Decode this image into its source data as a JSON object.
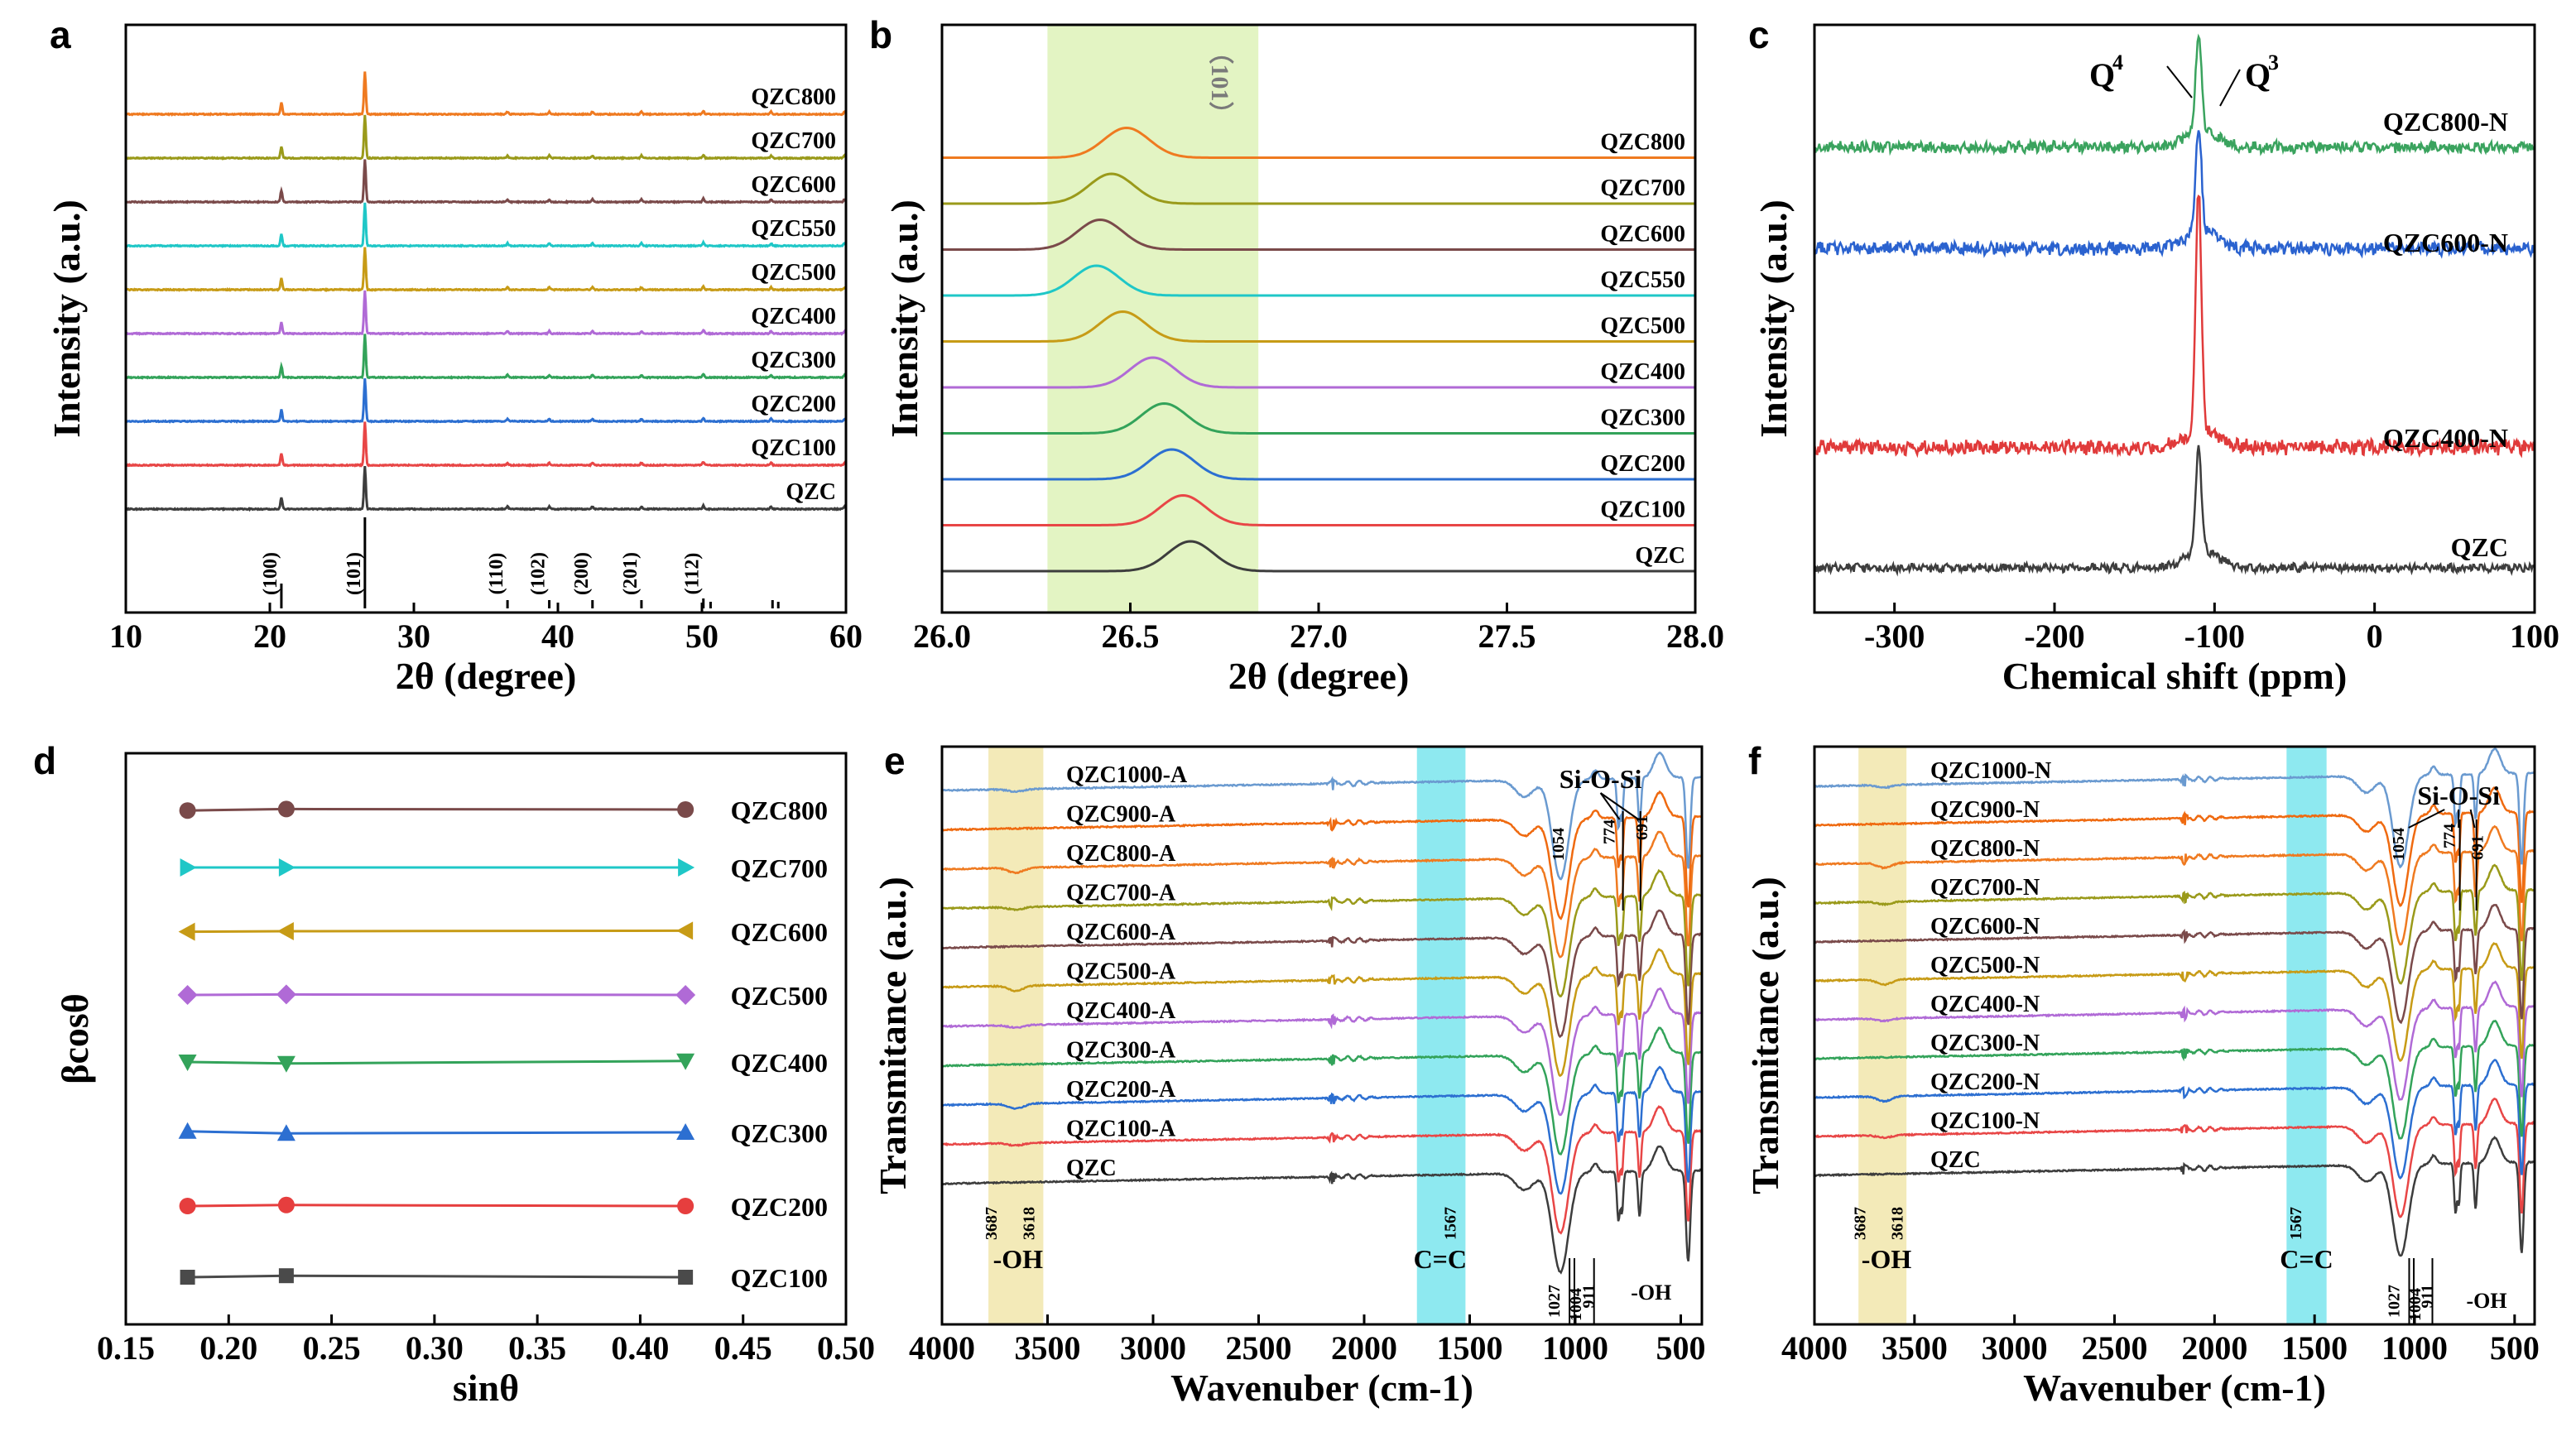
{
  "panels": {
    "a": {
      "label": "a",
      "xlabel": "2θ (degree)",
      "ylabel": "Intensity (a.u.)"
    },
    "b": {
      "label": "b",
      "xlabel": "2θ (degree)",
      "ylabel": "Intensity (a.u.)"
    },
    "c": {
      "label": "c",
      "xlabel": "Chemical shift (ppm)",
      "ylabel": "Intensity (a.u.)"
    },
    "d": {
      "label": "d",
      "xlabel": "sinθ",
      "ylabel": "βcosθ"
    },
    "e": {
      "label": "e",
      "xlabel": "Wavenuber (cm-1)",
      "ylabel": "Transmitance (a.u.)"
    },
    "f": {
      "label": "f",
      "xlabel": "Wavenuber (cm-1)",
      "ylabel": "Transmitance (a.u.)"
    }
  },
  "colors": {
    "QZC": "#3d3d3d",
    "QZC100": "#e84646",
    "QZC200": "#2c6fd1",
    "QZC300": "#33a35a",
    "QZC400": "#b06ad6",
    "QZC500": "#c79b16",
    "QZC550": "#1fc7c7",
    "QZC600": "#7a4a4a",
    "QZC700": "#9a9a1a",
    "QZC800": "#ef7a20",
    "QZC900": "#ef6a10",
    "QZC1000": "#6a9ad0",
    "highlight_green": "#e3f4c3",
    "highlight_yellow": "#f3eab8",
    "highlight_cyan": "#8ee9f0",
    "c_qzc": "#3d3d3d",
    "c_400": "#e03a3a",
    "c_600": "#2a62cf",
    "c_800": "#3aa35e"
  },
  "chart_data": [
    {
      "id": "a",
      "type": "line",
      "title": "",
      "xlabel": "2θ (degree)",
      "ylabel": "Intensity (a.u.)",
      "xlim": [
        10,
        60
      ],
      "xticks": [
        10,
        20,
        30,
        40,
        50,
        60
      ],
      "series": [
        "QZC",
        "QZC100",
        "QZC200",
        "QZC300",
        "QZC400",
        "QZC500",
        "QZC550",
        "QZC600",
        "QZC700",
        "QZC800"
      ],
      "peaks_2theta": [
        20.8,
        26.6,
        36.5,
        39.4,
        42.4,
        45.8,
        50.1
      ],
      "annotations": [
        "(100)",
        "(101)",
        "(110)",
        "(102)",
        "(200)",
        "(201)",
        "(112)"
      ]
    },
    {
      "id": "b",
      "type": "line",
      "title": "",
      "xlabel": "2θ (degree)",
      "ylabel": "Intensity (a.u.)",
      "xlim": [
        26.0,
        28.0
      ],
      "xticks": [
        "26.0",
        "26.5",
        "27.0",
        "27.5",
        "28.0"
      ],
      "series": [
        "QZC",
        "QZC100",
        "QZC200",
        "QZC300",
        "QZC400",
        "QZC500",
        "QZC550",
        "QZC600",
        "QZC700",
        "QZC800"
      ],
      "peak_positions": [
        26.66,
        26.64,
        26.61,
        26.59,
        26.56,
        26.48,
        26.41,
        26.42,
        26.45,
        26.49
      ],
      "highlight_range": [
        26.28,
        26.84
      ],
      "annotations": [
        "（101）"
      ]
    },
    {
      "id": "c",
      "type": "line",
      "title": "",
      "xlabel": "Chemical shift (ppm)",
      "ylabel": "Intensity (a.u.)",
      "xlim": [
        -350,
        100
      ],
      "xticks": [
        "-300",
        "-200",
        "-100",
        "0",
        "100"
      ],
      "series": [
        "QZC",
        "QZC400-N",
        "QZC600-N",
        "QZC800-N"
      ],
      "peaks_ppm": [
        -110,
        -101
      ],
      "annotations": [
        "Q4",
        "Q3"
      ]
    },
    {
      "id": "d",
      "type": "line",
      "title": "",
      "xlabel": "sinθ",
      "ylabel": "βcosθ",
      "xlim": [
        0.15,
        0.5
      ],
      "xticks": [
        "0.15",
        "0.20",
        "0.25",
        "0.30",
        "0.35",
        "0.40",
        "0.45",
        "0.50"
      ],
      "x": [
        0.18,
        0.228,
        0.422
      ],
      "series": [
        {
          "name": "QZC100",
          "marker": "square",
          "values": [
            0.0,
            0.3,
            0.0
          ]
        },
        {
          "name": "QZC200",
          "marker": "circle",
          "values": [
            0.0,
            0.2,
            0.0
          ]
        },
        {
          "name": "QZC300",
          "marker": "triangle-up",
          "values": [
            0.2,
            -0.2,
            0.0
          ]
        },
        {
          "name": "QZC400",
          "marker": "triangle-down",
          "values": [
            0.0,
            -0.3,
            0.2
          ]
        },
        {
          "name": "QZC500",
          "marker": "diamond",
          "values": [
            0.0,
            0.1,
            0.0
          ]
        },
        {
          "name": "QZC600",
          "marker": "triangle-left",
          "values": [
            -0.1,
            0.0,
            0.1
          ]
        },
        {
          "name": "QZC700",
          "marker": "triangle-right",
          "values": [
            0.0,
            0.0,
            0.0
          ]
        },
        {
          "name": "QZC800",
          "marker": "circle",
          "values": [
            -0.2,
            0.1,
            0.0
          ]
        }
      ]
    },
    {
      "id": "e",
      "type": "line",
      "title": "",
      "xlabel": "Wavenuber (cm-1)",
      "ylabel": "Transmitance (a.u.)",
      "xlim": [
        4000,
        400
      ],
      "xticks": [
        "4000",
        "3500",
        "3000",
        "2500",
        "2000",
        "1500",
        "1000",
        "500"
      ],
      "series": [
        "QZC",
        "QZC100-A",
        "QZC200-A",
        "QZC300-A",
        "QZC400-A",
        "QZC500-A",
        "QZC600-A",
        "QZC700-A",
        "QZC800-A",
        "QZC900-A",
        "QZC1000-A"
      ],
      "highlight_ranges": [
        [
          3780,
          3520
        ],
        [
          1750,
          1520
        ]
      ],
      "band_labels": [
        "3687",
        "3618",
        "1567",
        "1054",
        "774",
        "691",
        "1027",
        "1004",
        "911"
      ],
      "annotations": [
        "-OH",
        "C=C",
        "Si-O-Si",
        "-OH"
      ]
    },
    {
      "id": "f",
      "type": "line",
      "title": "",
      "xlabel": "Wavenuber (cm-1)",
      "ylabel": "Transmitance (a.u.)",
      "xlim": [
        4000,
        400
      ],
      "xticks": [
        "4000",
        "3500",
        "3000",
        "2500",
        "2000",
        "1500",
        "1000",
        "500"
      ],
      "series": [
        "QZC",
        "QZC100-N",
        "QZC200-N",
        "QZC300-N",
        "QZC400-N",
        "QZC500-N",
        "QZC600-N",
        "QZC700-N",
        "QZC800-N",
        "QZC900-N",
        "QZC1000-N"
      ],
      "highlight_ranges": [
        [
          3780,
          3540
        ],
        [
          1640,
          1440
        ]
      ],
      "band_labels": [
        "3687",
        "3618",
        "1567",
        "1054",
        "774",
        "691",
        "1027",
        "1004",
        "911"
      ],
      "annotations": [
        "-OH",
        "C=C",
        "Si-O-Si",
        "-OH"
      ]
    }
  ]
}
